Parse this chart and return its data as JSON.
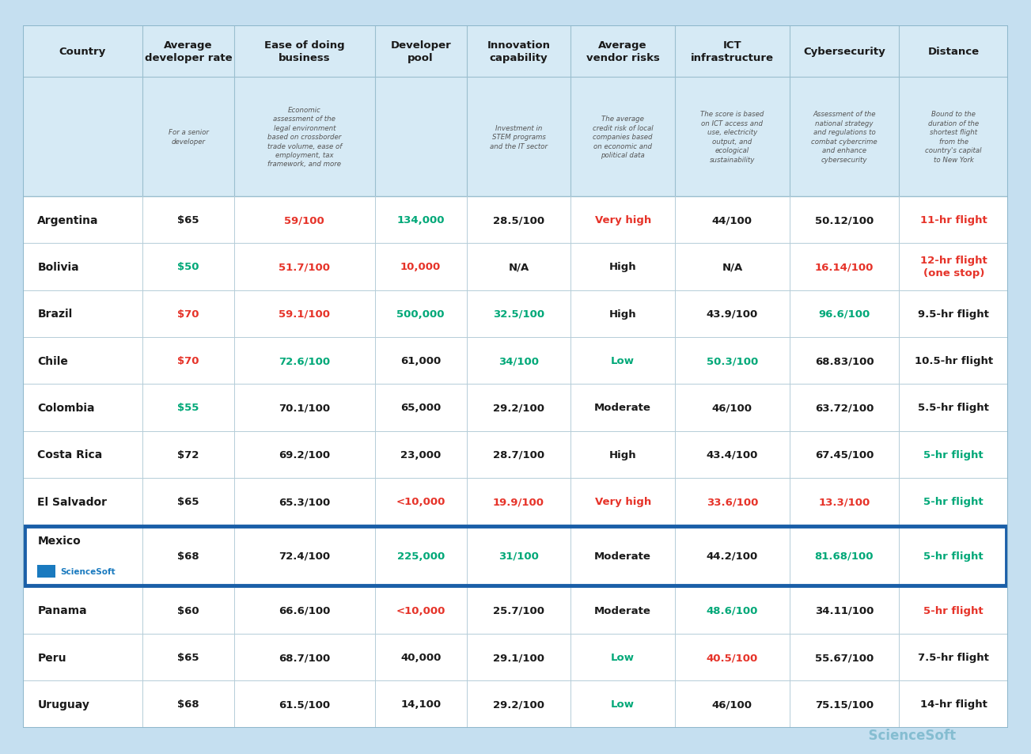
{
  "background_color": "#c5dff0",
  "table_bg": "#ffffff",
  "header_bg": "#d6eaf5",
  "mexico_border_color": "#1a5fa8",
  "col_headers": [
    "Country",
    "Average\ndeveloper rate",
    "Ease of doing\nbusiness",
    "Developer\npool",
    "Innovation\ncapability",
    "Average\nvendor risks",
    "ICT\ninfrastructure",
    "Cybersecurity",
    "Distance"
  ],
  "col_subheaders": [
    "",
    "For a senior\ndeveloper",
    "Economic\nassessment of the\nlegal environment\nbased on crossborder\ntrade volume, ease of\nemployment, tax\nframework, and more",
    "",
    "Investment in\nSTEM programs\nand the IT sector",
    "The average\ncredit risk of local\ncompanies based\non economic and\npolitical data",
    "The score is based\non ICT access and\nuse, electricity\noutput, and\necological\nsustainability",
    "Assessment of the\nnational strategy\nand regulations to\ncombat cybercrime\nand enhance\ncybersecurity",
    "Bound to the\nduration of the\nshortest flight\nfrom the\ncountry's capital\nto New York"
  ],
  "col_widths_raw": [
    1.15,
    0.88,
    1.35,
    0.88,
    1.0,
    1.0,
    1.1,
    1.05,
    1.05
  ],
  "rows": [
    {
      "country": "Argentina",
      "dev_rate": {
        "text": "$65",
        "color": "#1a1a1a"
      },
      "ease_business": {
        "text": "59/100",
        "color": "#e63329"
      },
      "dev_pool": {
        "text": "134,000",
        "color": "#00a878"
      },
      "innovation": {
        "text": "28.5/100",
        "color": "#1a1a1a"
      },
      "vendor_risks": {
        "text": "Very high",
        "color": "#e63329"
      },
      "ict": {
        "text": "44/100",
        "color": "#1a1a1a"
      },
      "cybersecurity": {
        "text": "50.12/100",
        "color": "#1a1a1a"
      },
      "distance": {
        "text": "11-hr flight",
        "color": "#e63329"
      },
      "is_mexico": false
    },
    {
      "country": "Bolivia",
      "dev_rate": {
        "text": "$50",
        "color": "#00a878"
      },
      "ease_business": {
        "text": "51.7/100",
        "color": "#e63329"
      },
      "dev_pool": {
        "text": "10,000",
        "color": "#e63329"
      },
      "innovation": {
        "text": "N/A",
        "color": "#1a1a1a"
      },
      "vendor_risks": {
        "text": "High",
        "color": "#1a1a1a"
      },
      "ict": {
        "text": "N/A",
        "color": "#1a1a1a"
      },
      "cybersecurity": {
        "text": "16.14/100",
        "color": "#e63329"
      },
      "distance": {
        "text": "12-hr flight\n(one stop)",
        "color": "#e63329"
      },
      "is_mexico": false
    },
    {
      "country": "Brazil",
      "dev_rate": {
        "text": "$70",
        "color": "#e63329"
      },
      "ease_business": {
        "text": "59.1/100",
        "color": "#e63329"
      },
      "dev_pool": {
        "text": "500,000",
        "color": "#00a878"
      },
      "innovation": {
        "text": "32.5/100",
        "color": "#00a878"
      },
      "vendor_risks": {
        "text": "High",
        "color": "#1a1a1a"
      },
      "ict": {
        "text": "43.9/100",
        "color": "#1a1a1a"
      },
      "cybersecurity": {
        "text": "96.6/100",
        "color": "#00a878"
      },
      "distance": {
        "text": "9.5-hr flight",
        "color": "#1a1a1a"
      },
      "is_mexico": false
    },
    {
      "country": "Chile",
      "dev_rate": {
        "text": "$70",
        "color": "#e63329"
      },
      "ease_business": {
        "text": "72.6/100",
        "color": "#00a878"
      },
      "dev_pool": {
        "text": "61,000",
        "color": "#1a1a1a"
      },
      "innovation": {
        "text": "34/100",
        "color": "#00a878"
      },
      "vendor_risks": {
        "text": "Low",
        "color": "#00a878"
      },
      "ict": {
        "text": "50.3/100",
        "color": "#00a878"
      },
      "cybersecurity": {
        "text": "68.83/100",
        "color": "#1a1a1a"
      },
      "distance": {
        "text": "10.5-hr flight",
        "color": "#1a1a1a"
      },
      "is_mexico": false
    },
    {
      "country": "Colombia",
      "dev_rate": {
        "text": "$55",
        "color": "#00a878"
      },
      "ease_business": {
        "text": "70.1/100",
        "color": "#1a1a1a"
      },
      "dev_pool": {
        "text": "65,000",
        "color": "#1a1a1a"
      },
      "innovation": {
        "text": "29.2/100",
        "color": "#1a1a1a"
      },
      "vendor_risks": {
        "text": "Moderate",
        "color": "#1a1a1a"
      },
      "ict": {
        "text": "46/100",
        "color": "#1a1a1a"
      },
      "cybersecurity": {
        "text": "63.72/100",
        "color": "#1a1a1a"
      },
      "distance": {
        "text": "5.5-hr flight",
        "color": "#1a1a1a"
      },
      "is_mexico": false
    },
    {
      "country": "Costa Rica",
      "dev_rate": {
        "text": "$72",
        "color": "#1a1a1a"
      },
      "ease_business": {
        "text": "69.2/100",
        "color": "#1a1a1a"
      },
      "dev_pool": {
        "text": "23,000",
        "color": "#1a1a1a"
      },
      "innovation": {
        "text": "28.7/100",
        "color": "#1a1a1a"
      },
      "vendor_risks": {
        "text": "High",
        "color": "#1a1a1a"
      },
      "ict": {
        "text": "43.4/100",
        "color": "#1a1a1a"
      },
      "cybersecurity": {
        "text": "67.45/100",
        "color": "#1a1a1a"
      },
      "distance": {
        "text": "5-hr flight",
        "color": "#00a878"
      },
      "is_mexico": false
    },
    {
      "country": "El Salvador",
      "dev_rate": {
        "text": "$65",
        "color": "#1a1a1a"
      },
      "ease_business": {
        "text": "65.3/100",
        "color": "#1a1a1a"
      },
      "dev_pool": {
        "text": "<10,000",
        "color": "#e63329"
      },
      "innovation": {
        "text": "19.9/100",
        "color": "#e63329"
      },
      "vendor_risks": {
        "text": "Very high",
        "color": "#e63329"
      },
      "ict": {
        "text": "33.6/100",
        "color": "#e63329"
      },
      "cybersecurity": {
        "text": "13.3/100",
        "color": "#e63329"
      },
      "distance": {
        "text": "5-hr flight",
        "color": "#00a878"
      },
      "is_mexico": false
    },
    {
      "country": "Mexico",
      "dev_rate": {
        "text": "$68",
        "color": "#1a1a1a"
      },
      "ease_business": {
        "text": "72.4/100",
        "color": "#1a1a1a"
      },
      "dev_pool": {
        "text": "225,000",
        "color": "#00a878"
      },
      "innovation": {
        "text": "31/100",
        "color": "#00a878"
      },
      "vendor_risks": {
        "text": "Moderate",
        "color": "#1a1a1a"
      },
      "ict": {
        "text": "44.2/100",
        "color": "#1a1a1a"
      },
      "cybersecurity": {
        "text": "81.68/100",
        "color": "#00a878"
      },
      "distance": {
        "text": "5-hr flight",
        "color": "#00a878"
      },
      "is_mexico": true
    },
    {
      "country": "Panama",
      "dev_rate": {
        "text": "$60",
        "color": "#1a1a1a"
      },
      "ease_business": {
        "text": "66.6/100",
        "color": "#1a1a1a"
      },
      "dev_pool": {
        "text": "<10,000",
        "color": "#e63329"
      },
      "innovation": {
        "text": "25.7/100",
        "color": "#1a1a1a"
      },
      "vendor_risks": {
        "text": "Moderate",
        "color": "#1a1a1a"
      },
      "ict": {
        "text": "48.6/100",
        "color": "#00a878"
      },
      "cybersecurity": {
        "text": "34.11/100",
        "color": "#1a1a1a"
      },
      "distance": {
        "text": "5-hr flight",
        "color": "#e63329"
      },
      "is_mexico": false
    },
    {
      "country": "Peru",
      "dev_rate": {
        "text": "$65",
        "color": "#1a1a1a"
      },
      "ease_business": {
        "text": "68.7/100",
        "color": "#1a1a1a"
      },
      "dev_pool": {
        "text": "40,000",
        "color": "#1a1a1a"
      },
      "innovation": {
        "text": "29.1/100",
        "color": "#1a1a1a"
      },
      "vendor_risks": {
        "text": "Low",
        "color": "#00a878"
      },
      "ict": {
        "text": "40.5/100",
        "color": "#e63329"
      },
      "cybersecurity": {
        "text": "55.67/100",
        "color": "#1a1a1a"
      },
      "distance": {
        "text": "7.5-hr flight",
        "color": "#1a1a1a"
      },
      "is_mexico": false
    },
    {
      "country": "Uruguay",
      "dev_rate": {
        "text": "$68",
        "color": "#1a1a1a"
      },
      "ease_business": {
        "text": "61.5/100",
        "color": "#1a1a1a"
      },
      "dev_pool": {
        "text": "14,100",
        "color": "#1a1a1a"
      },
      "innovation": {
        "text": "29.2/100",
        "color": "#1a1a1a"
      },
      "vendor_risks": {
        "text": "Low",
        "color": "#00a878"
      },
      "ict": {
        "text": "46/100",
        "color": "#1a1a1a"
      },
      "cybersecurity": {
        "text": "75.15/100",
        "color": "#1a1a1a"
      },
      "distance": {
        "text": "14-hr flight",
        "color": "#1a1a1a"
      },
      "is_mexico": false
    }
  ]
}
